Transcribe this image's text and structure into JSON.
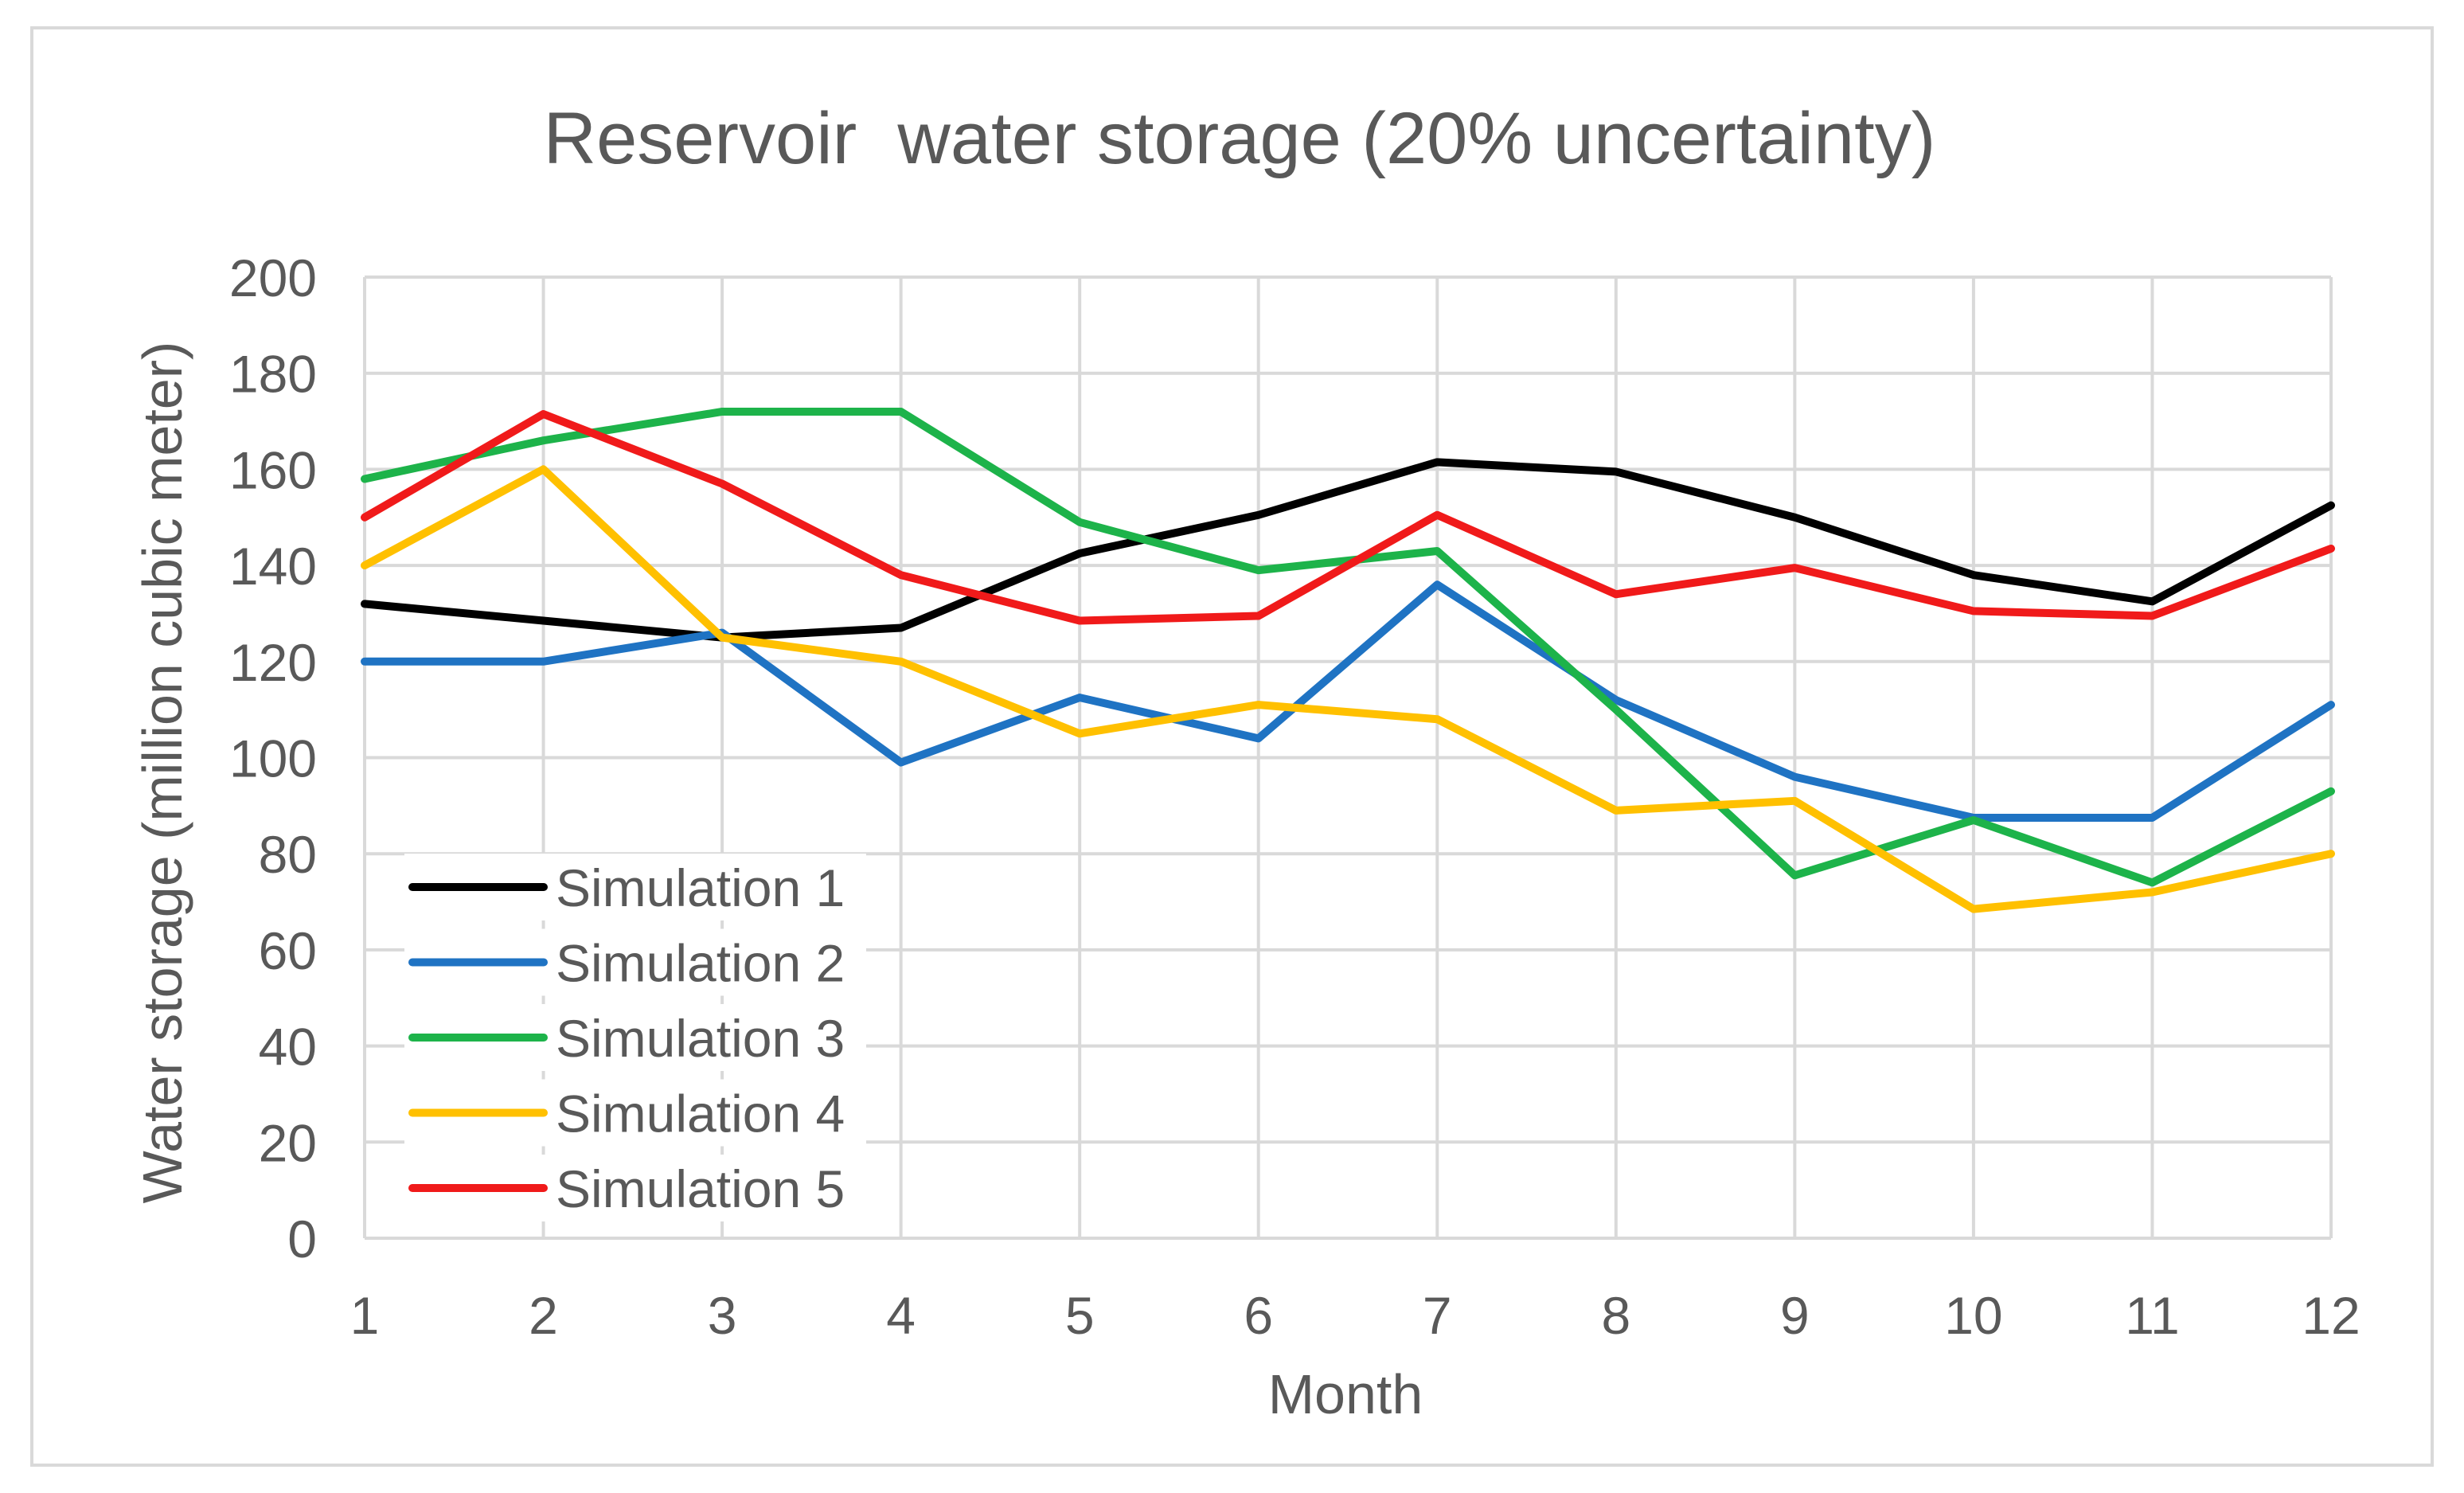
{
  "chart_data": {
    "type": "line",
    "title": "Reservoir  water storage (20% uncertainty)",
    "xlabel": "Month",
    "ylabel": "Water storage (million cubic meter)",
    "x": [
      1,
      2,
      3,
      4,
      5,
      6,
      7,
      8,
      9,
      10,
      11,
      12
    ],
    "x_tick_labels": [
      "1",
      "2",
      "3",
      "4",
      "5",
      "6",
      "7",
      "8",
      "9",
      "10",
      "11",
      "12"
    ],
    "ylim": [
      0,
      200
    ],
    "y_ticks": [
      0,
      20,
      40,
      60,
      80,
      100,
      120,
      140,
      160,
      180,
      200
    ],
    "grid": true,
    "legend_position": "bottom-left",
    "series": [
      {
        "name": "Simulation 1",
        "color": "#000000",
        "values": [
          132,
          128.5,
          125,
          127,
          142.5,
          150.5,
          161.5,
          159.5,
          150,
          138,
          132.5,
          152.5
        ]
      },
      {
        "name": "Simulation 2",
        "color": "#1f73c3",
        "values": [
          120,
          120,
          126,
          99,
          112.5,
          104,
          136,
          112,
          96,
          87.5,
          87.5,
          111
        ]
      },
      {
        "name": "Simulation 3",
        "color": "#1db34a",
        "values": [
          158,
          166,
          172,
          172,
          149,
          139,
          143,
          110,
          75.5,
          87,
          74,
          93
        ]
      },
      {
        "name": "Simulation 4",
        "color": "#ffc000",
        "values": [
          140,
          160,
          125,
          120,
          105,
          111,
          108,
          89,
          91,
          68.5,
          72,
          80
        ]
      },
      {
        "name": "Simulation 5",
        "color": "#f01a1a",
        "values": [
          150,
          171.5,
          157,
          138,
          128.5,
          129.5,
          150.5,
          134,
          139.5,
          130.5,
          129.5,
          143.5
        ]
      }
    ]
  }
}
